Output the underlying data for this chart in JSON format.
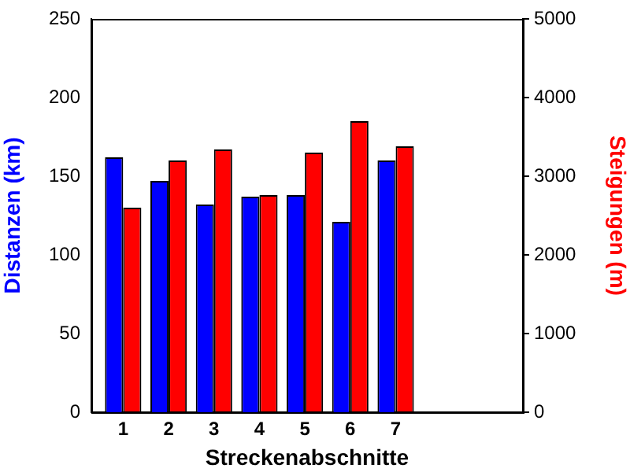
{
  "chart_data": {
    "type": "bar",
    "xlabel": "Streckenabschnitte",
    "ylabel": "Distanzen (km)",
    "y2label": "Steigungen (m)",
    "x": [
      1,
      2,
      3,
      4,
      5,
      6,
      7
    ],
    "xlim": [
      0.3,
      9.8
    ],
    "xticks": [
      1,
      2,
      3,
      4,
      5,
      6,
      7
    ],
    "ylim": [
      0,
      250
    ],
    "yticks": [
      0,
      50,
      100,
      150,
      200,
      250
    ],
    "y2lim": [
      0,
      5000
    ],
    "y2ticks": [
      0,
      1000,
      2000,
      3000,
      4000,
      5000
    ],
    "series": [
      {
        "color": "#0000ff",
        "values": [
          162,
          147,
          132,
          137,
          138,
          121,
          160
        ]
      },
      {
        "color": "#ff0000",
        "axis": "y2",
        "values": [
          2600,
          3200,
          3340,
          2760,
          3300,
          3700,
          3380
        ]
      }
    ],
    "grid": false,
    "legend": false
  }
}
